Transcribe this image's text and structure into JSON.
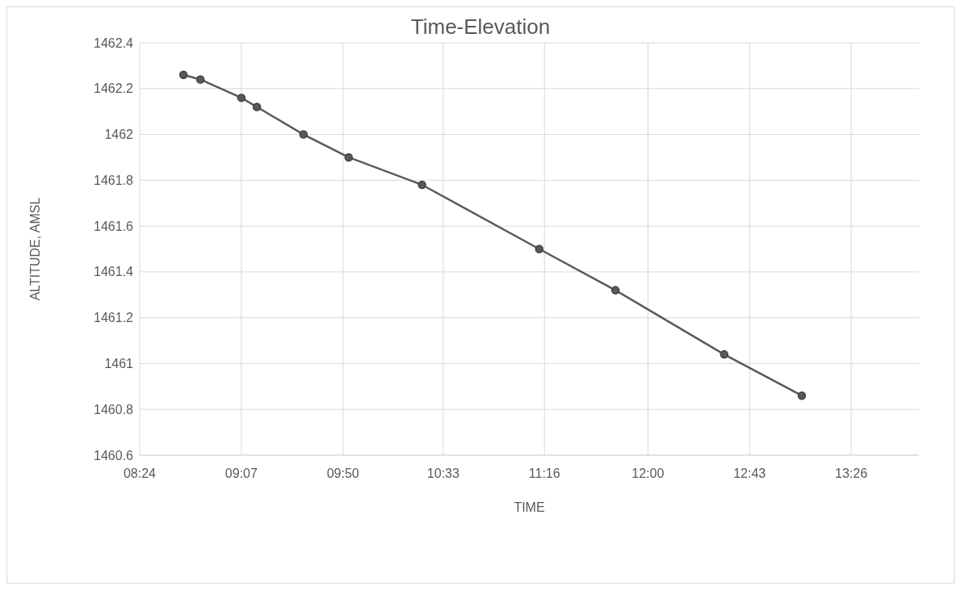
{
  "chart_data": {
    "type": "line",
    "title": "Time-Elevation",
    "xlabel": "TIME",
    "ylabel": "ALTITUDE, AMSL",
    "x": [
      8.71,
      8.83,
      9.12,
      9.23,
      9.56,
      9.88,
      10.4,
      11.23,
      11.77,
      12.54,
      13.09
    ],
    "series": [
      {
        "color": "#595959",
        "values": [
          1462.26,
          1462.24,
          1462.16,
          1462.12,
          1462.0,
          1461.9,
          1461.78,
          1461.5,
          1461.32,
          1461.04,
          1460.86
        ]
      }
    ],
    "xlim": [
      8.4,
      13.92
    ],
    "xticks": [
      {
        "value": 8.4,
        "label": "08:24"
      },
      {
        "value": 9.12,
        "label": "09:07"
      },
      {
        "value": 9.84,
        "label": "09:50"
      },
      {
        "value": 10.55,
        "label": "10:33"
      },
      {
        "value": 11.267,
        "label": "11:16"
      },
      {
        "value": 12.0,
        "label": "12:00"
      },
      {
        "value": 12.72,
        "label": "12:43"
      },
      {
        "value": 13.44,
        "label": "13:26"
      }
    ],
    "ylim": [
      1460.6,
      1462.4
    ],
    "yticks": [
      1460.6,
      1460.8,
      1461,
      1461.2,
      1461.4,
      1461.6,
      1461.8,
      1462,
      1462.2,
      1462.4
    ],
    "grid": true,
    "marker": "circle",
    "line_style": "solid"
  }
}
